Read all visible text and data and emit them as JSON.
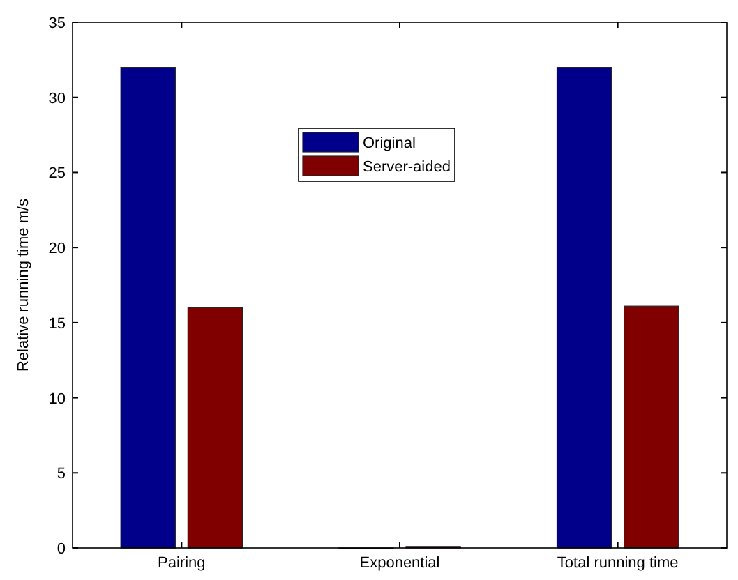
{
  "chart_data": {
    "type": "bar",
    "ylabel": "Relative running time m/s",
    "categories": [
      "Pairing",
      "Exponential",
      "Total running time"
    ],
    "series": [
      {
        "name": "Original",
        "color": "#00008b",
        "values": [
          32,
          0,
          32
        ]
      },
      {
        "name": "Server-aided",
        "color": "#800000",
        "values": [
          16,
          0.1,
          16.1
        ]
      }
    ],
    "ylim": [
      0,
      35
    ],
    "yticks": [
      0,
      5,
      10,
      15,
      20,
      25,
      30,
      35
    ],
    "grid": false,
    "legend": "top"
  }
}
